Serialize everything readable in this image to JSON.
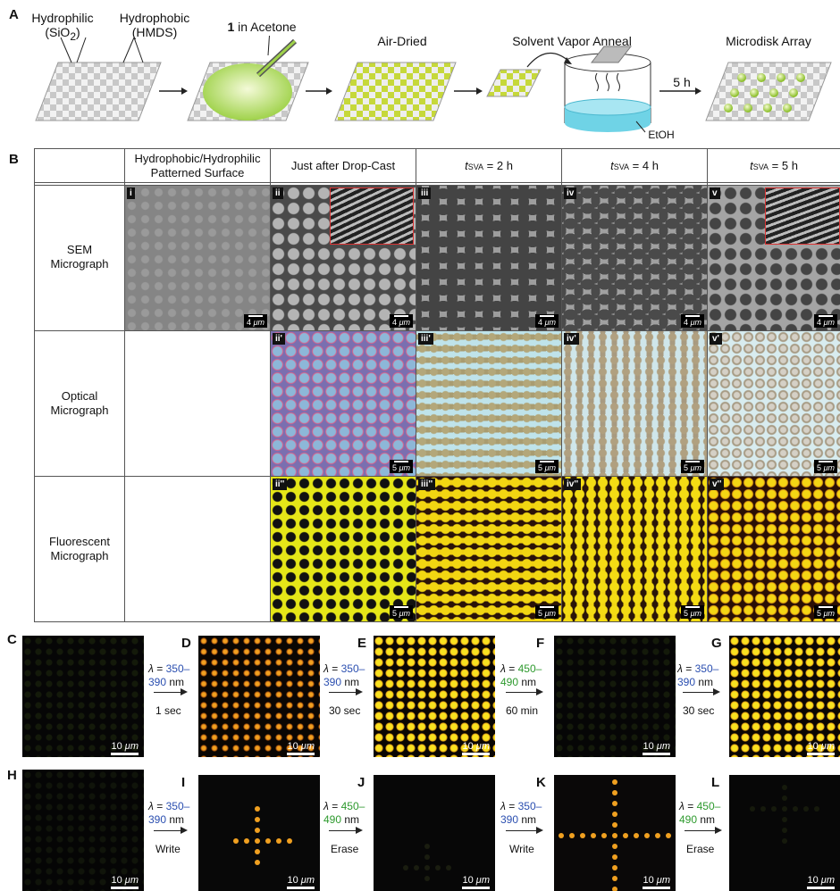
{
  "panel_A": {
    "letter": "A",
    "hydrophilic": "Hydrophilic",
    "hydrophilic_sub": "(SiO",
    "hydrophilic_sub2": "2",
    "hydrophilic_sub3": ")",
    "hydrophobic": "Hydrophobic",
    "hydrophobic_sub": "(HMDS)",
    "step2_bold": "1",
    "step2": " in Acetone",
    "step3": "Air-Dried",
    "step4": "Solvent Vapor Anneal",
    "step5": "Microdisk Array",
    "time": "5 h",
    "solvent": "EtOH"
  },
  "panel_B": {
    "letter": "B",
    "columns": [
      {
        "line1": "Hydrophobic/Hydrophilic",
        "line2": "Patterned Surface"
      },
      {
        "line1": "Just after Drop-Cast",
        "line2": ""
      },
      {
        "t": "t",
        "sub": "SVA",
        "rest": " = 2 h"
      },
      {
        "t": "t",
        "sub": "SVA",
        "rest": " = 4 h"
      },
      {
        "t": "t",
        "sub": "SVA",
        "rest": " = 5 h"
      }
    ],
    "rows": [
      {
        "line1": "SEM",
        "line2": "Micrograph"
      },
      {
        "line1": "Optical",
        "line2": "Micrograph"
      },
      {
        "line1": "Fluorescent",
        "line2": "Micrograph"
      }
    ],
    "tags": {
      "sem": [
        "i",
        "ii",
        "iii",
        "iv",
        "v"
      ],
      "opt": [
        "ii'",
        "iii'",
        "iv'",
        "v'"
      ],
      "flu": [
        "ii''",
        "iii''",
        "iv''",
        "v''"
      ]
    },
    "scale_sem": "4",
    "scale_opt": "5",
    "scale_unit": "μm"
  },
  "panel_CG": {
    "letters": [
      "C",
      "D",
      "E",
      "F",
      "G"
    ],
    "arrows": [
      {
        "lam": "λ",
        "eq": " = ",
        "range1": "350–",
        "range2": "390",
        "unit": " nm",
        "color": "blue",
        "time": "1 sec"
      },
      {
        "lam": "λ",
        "eq": " = ",
        "range1": "350–",
        "range2": "390",
        "unit": " nm",
        "color": "blue",
        "time": "30 sec"
      },
      {
        "lam": "λ",
        "eq": " = ",
        "range1": "450–",
        "range2": "490",
        "unit": " nm",
        "color": "green",
        "time": "60 min"
      },
      {
        "lam": "λ",
        "eq": " = ",
        "range1": "350–",
        "range2": "390",
        "unit": " nm",
        "color": "blue",
        "time": "30 sec"
      }
    ],
    "scale": "10"
  },
  "panel_HL": {
    "letters": [
      "H",
      "I",
      "J",
      "K",
      "L"
    ],
    "arrows": [
      {
        "lam": "λ",
        "eq": " = ",
        "range1": "350–",
        "range2": "390",
        "unit": " nm",
        "color": "blue",
        "time": "Write"
      },
      {
        "lam": "λ",
        "eq": " = ",
        "range1": "450–",
        "range2": "490",
        "unit": " nm",
        "color": "green",
        "time": "Erase"
      },
      {
        "lam": "λ",
        "eq": " = ",
        "range1": "350–",
        "range2": "390",
        "unit": " nm",
        "color": "blue",
        "time": "Write"
      },
      {
        "lam": "λ",
        "eq": " = ",
        "range1": "450–",
        "range2": "490",
        "unit": " nm",
        "color": "green",
        "time": "Erase"
      }
    ],
    "scale": "10"
  },
  "colors": {
    "blue": "#2b4fb0",
    "green": "#2e9a2e",
    "fluor_yellow": "#f2dc16",
    "fluor_orange": "#e89a1a"
  }
}
